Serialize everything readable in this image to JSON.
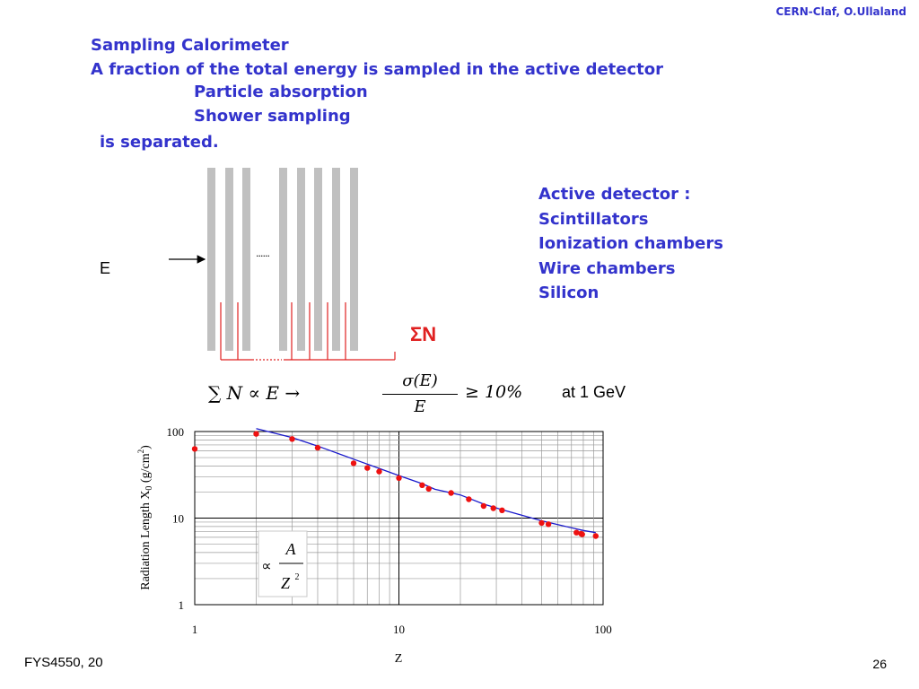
{
  "header": {
    "credit": "CERN-Claf, O.Ullaland"
  },
  "heading": {
    "title": "Sampling Calorimeter",
    "line1": "A fraction of the total energy is sampled in the active detector",
    "item1": "Particle absorption",
    "item2": "Shower sampling",
    "line2": "is separated."
  },
  "detector_list": {
    "title": "Active detector :",
    "items": [
      "Scintillators",
      "Ionization chambers",
      "Wire chambers",
      "Silicon"
    ]
  },
  "diagram": {
    "energy_label": "E",
    "sum_label": "ΣN",
    "dots": "......"
  },
  "formula": {
    "lhs": "∑ N ∝ E →",
    "numerator": "σ(E)",
    "denominator": "E",
    "rhs": "≥ 10%",
    "note": "at 1 GeV"
  },
  "annotation": {
    "proportional": "∝",
    "numerator": "A",
    "denominator": "Z",
    "exponent": "2"
  },
  "chart_data": {
    "type": "scatter",
    "ylabel": "Radiation Length X",
    "ylabel_sub": "0",
    "ylabel_unit": " (g/cm",
    "ylabel_sup": "2",
    "ylabel_close": ")",
    "xlabel": "Z",
    "x_scale": "log",
    "y_scale": "log",
    "xlim": [
      1,
      100
    ],
    "ylim": [
      1,
      100
    ],
    "x_ticks": [
      "1",
      "10",
      "100"
    ],
    "y_ticks": [
      "100",
      "10",
      "1"
    ],
    "grid": true,
    "colors": {
      "points": "#ee1111",
      "line": "#1a1acc"
    },
    "points": [
      [
        1,
        63
      ],
      [
        2,
        94
      ],
      [
        3,
        82
      ],
      [
        4,
        65
      ],
      [
        6,
        43
      ],
      [
        7,
        38
      ],
      [
        8,
        34.5
      ],
      [
        10,
        29
      ],
      [
        13,
        24
      ],
      [
        14,
        21.8
      ],
      [
        18,
        19.5
      ],
      [
        22,
        16.5
      ],
      [
        26,
        13.8
      ],
      [
        29,
        13
      ],
      [
        32,
        12.3
      ],
      [
        50,
        8.8
      ],
      [
        54,
        8.5
      ],
      [
        74,
        6.8
      ],
      [
        78,
        6.6
      ],
      [
        79,
        6.5
      ],
      [
        92,
        6.2
      ]
    ],
    "curve": [
      [
        2,
        108
      ],
      [
        3,
        85
      ],
      [
        4,
        68
      ],
      [
        6,
        48
      ],
      [
        8,
        37.5
      ],
      [
        10,
        31
      ],
      [
        13,
        25
      ],
      [
        15,
        21.5
      ],
      [
        20,
        18.5
      ],
      [
        26,
        14.5
      ],
      [
        32,
        12.5
      ],
      [
        50,
        9.3
      ],
      [
        60,
        8.4
      ],
      [
        80,
        7.2
      ],
      [
        92,
        6.8
      ]
    ]
  },
  "footer": {
    "course": "FYS4550, 20",
    "page": "26"
  }
}
